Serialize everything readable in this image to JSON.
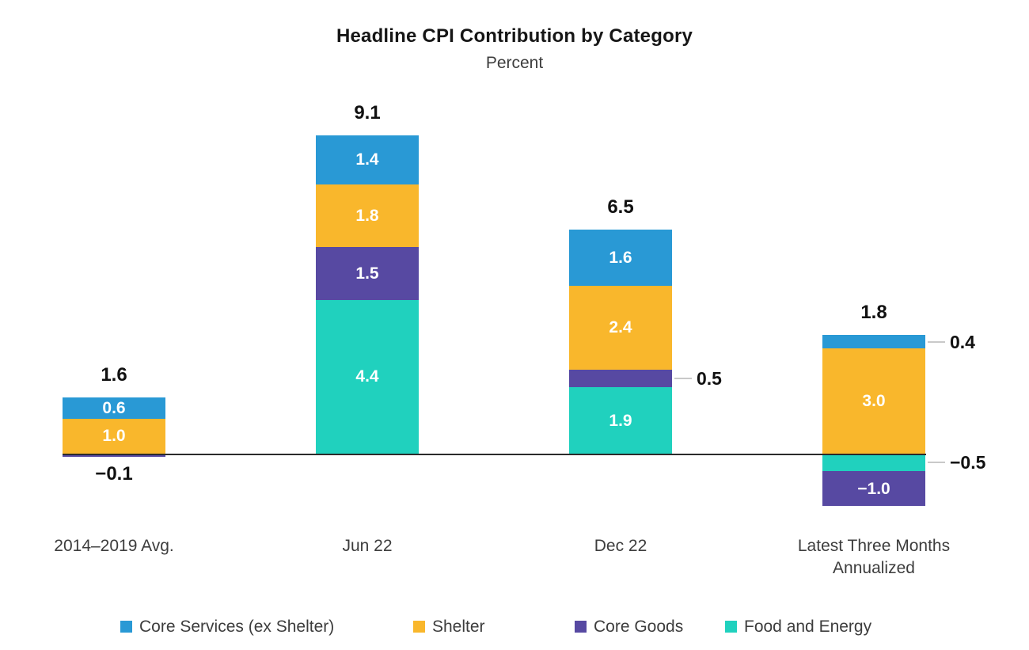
{
  "chart_data": {
    "type": "bar",
    "stacked": true,
    "title": "Headline CPI Contribution by Category",
    "subtitle": "Percent",
    "unit": "percent",
    "grid": false,
    "y_axis_shown": false,
    "zero_baseline": true,
    "legend_position": "bottom",
    "categories": [
      "2014–2019 Avg.",
      "Jun 22",
      "Dec 22",
      "Latest Three Months Annualized"
    ],
    "series": [
      {
        "name": "Core Services (ex Shelter)",
        "color": "#2999D5",
        "values": [
          0.6,
          1.4,
          1.6,
          0.4
        ]
      },
      {
        "name": "Shelter",
        "color": "#F9B72C",
        "values": [
          1.0,
          1.8,
          2.4,
          3.0
        ]
      },
      {
        "name": "Core Goods",
        "color": "#5749A2",
        "values": [
          -0.1,
          1.5,
          0.5,
          -1.0
        ]
      },
      {
        "name": "Food and Energy",
        "color": "#20D1BE",
        "values": [
          0.0,
          4.4,
          1.9,
          -0.5
        ]
      }
    ],
    "totals": [
      "1.6",
      "9.1",
      "6.5",
      "1.8"
    ],
    "bars": [
      {
        "category": "2014–2019 Avg.",
        "total_label": "1.6",
        "segments": [
          {
            "series": "Core Services (ex Shelter)",
            "value": 0.6,
            "label": "0.6",
            "label_position": "inside"
          },
          {
            "series": "Shelter",
            "value": 1.0,
            "label": "1.0",
            "label_position": "inside"
          },
          {
            "series": "Core Goods",
            "value": -0.1,
            "label": "−0.1",
            "label_position": "below"
          }
        ]
      },
      {
        "category": "Jun 22",
        "total_label": "9.1",
        "segments": [
          {
            "series": "Core Services (ex Shelter)",
            "value": 1.4,
            "label": "1.4",
            "label_position": "inside"
          },
          {
            "series": "Shelter",
            "value": 1.8,
            "label": "1.8",
            "label_position": "inside"
          },
          {
            "series": "Core Goods",
            "value": 1.5,
            "label": "1.5",
            "label_position": "inside"
          },
          {
            "series": "Food and Energy",
            "value": 4.4,
            "label": "4.4",
            "label_position": "inside"
          }
        ]
      },
      {
        "category": "Dec 22",
        "total_label": "6.5",
        "segments": [
          {
            "series": "Core Services (ex Shelter)",
            "value": 1.6,
            "label": "1.6",
            "label_position": "inside"
          },
          {
            "series": "Shelter",
            "value": 2.4,
            "label": "2.4",
            "label_position": "inside"
          },
          {
            "series": "Core Goods",
            "value": 0.5,
            "label": "0.5",
            "label_position": "right"
          },
          {
            "series": "Food and Energy",
            "value": 1.9,
            "label": "1.9",
            "label_position": "inside"
          }
        ]
      },
      {
        "category": "Latest Three Months Annualized",
        "total_label": "1.8",
        "segments": [
          {
            "series": "Core Services (ex Shelter)",
            "value": 0.4,
            "label": "0.4",
            "label_position": "right"
          },
          {
            "series": "Shelter",
            "value": 3.0,
            "label": "3.0",
            "label_position": "inside"
          },
          {
            "series": "Food and Energy",
            "value": -0.5,
            "label": "−0.5",
            "label_position": "right"
          },
          {
            "series": "Core Goods",
            "value": -1.0,
            "label": "−1.0",
            "label_position": "inside"
          }
        ]
      }
    ],
    "legend": [
      "Core Services (ex Shelter)",
      "Shelter",
      "Core Goods",
      "Food and Energy"
    ],
    "colors": {
      "Core Services (ex Shelter)": "#2999D5",
      "Shelter": "#F9B72C",
      "Core Goods": "#5749A2",
      "Food and Energy": "#20D1BE",
      "axis": "#2b2b2b",
      "leader": "#c9c9c9",
      "label_dark": "#111111",
      "label_gray": "#3d3d3d"
    }
  }
}
